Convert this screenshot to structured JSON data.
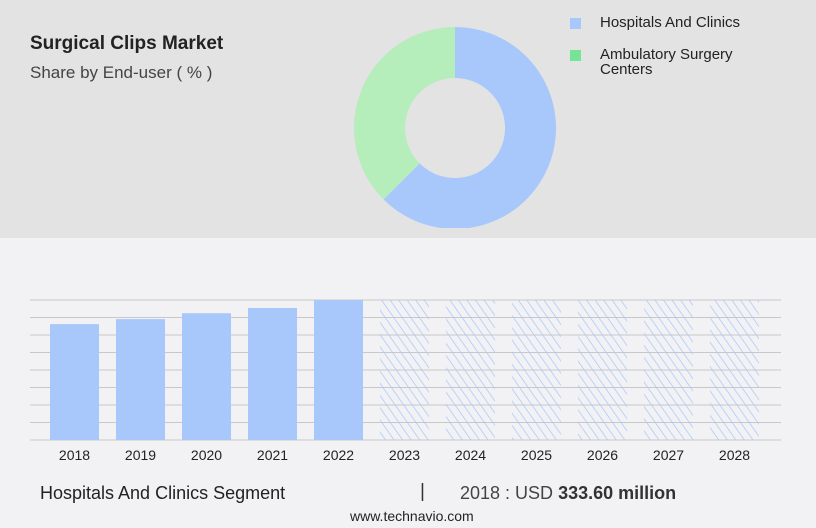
{
  "title": "Surgical Clips Market",
  "subtitle": "Share by End-user ( % )",
  "legend": [
    {
      "label": "Hospitals And Clinics",
      "color": "#a8c8fc"
    },
    {
      "label": "Ambulatory Surgery Centers",
      "color": "#77e397"
    }
  ],
  "footer": {
    "segment": "Hospitals And Clinics Segment",
    "separator": "|",
    "year_prefix": "2018 : USD ",
    "value": "333.60 million",
    "source": "www.technavio.com"
  },
  "chart_data": [
    {
      "type": "pie",
      "donut": true,
      "slices": [
        {
          "label": "Hospitals And Clinics",
          "value": 62.5,
          "color": "#a8c8fc"
        },
        {
          "label": "Ambulatory Surgery Centers",
          "value": 37.5,
          "color": "#b5edbb"
        }
      ]
    },
    {
      "type": "bar",
      "categories": [
        "2018",
        "2019",
        "2020",
        "2021",
        "2022",
        "2023",
        "2024",
        "2025",
        "2026",
        "2027",
        "2028"
      ],
      "values": [
        333.6,
        348,
        365,
        380,
        403,
        null,
        null,
        null,
        null,
        null,
        null
      ],
      "forecast": [
        "2023",
        "2024",
        "2025",
        "2026",
        "2027",
        "2028"
      ],
      "unit": "USD million",
      "grid": true,
      "color": "#a8c8fc"
    }
  ]
}
